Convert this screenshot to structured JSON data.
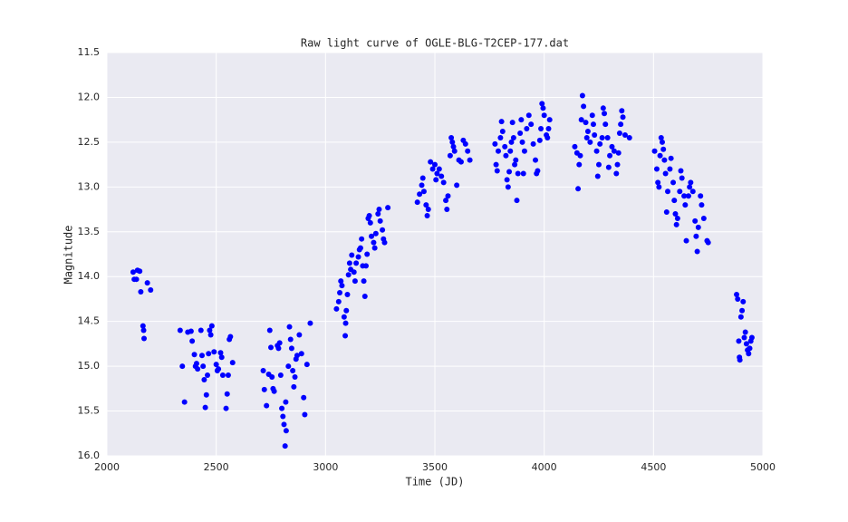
{
  "chart_data": {
    "type": "scatter",
    "title": "Raw light curve of OGLE-BLG-T2CEP-177.dat",
    "x_label": "Time (JD)",
    "y_label": "Magnitude",
    "color": "#0000ff",
    "grid": true,
    "background": "#eaeaf2",
    "grid_color": "#ffffff",
    "y_inverted": true,
    "xlim": [
      2000,
      5000
    ],
    "xticks": [
      2000,
      2500,
      3000,
      3500,
      4000,
      4500,
      5000
    ],
    "ylim": [
      11.5,
      16.0
    ],
    "yticks": [
      11.5,
      {
        "value": 12,
        "label": "12.0"
      },
      12.5,
      {
        "value": 13,
        "label": "13.0"
      },
      13.5,
      {
        "value": 14,
        "label": "14.0"
      },
      14.5,
      {
        "value": 15,
        "label": "15.0"
      },
      15.5,
      {
        "value": 16,
        "label": "16.0"
      }
    ],
    "x": [
      2120,
      2125,
      2135,
      2140,
      2150,
      2155,
      2165,
      2168,
      2170,
      2185,
      2200,
      2335,
      2345,
      2355,
      2370,
      2385,
      2390,
      2400,
      2405,
      2410,
      2415,
      2430,
      2435,
      2440,
      2445,
      2450,
      2455,
      2460,
      2465,
      2470,
      2475,
      2480,
      2490,
      2500,
      2505,
      2510,
      2520,
      2525,
      2530,
      2545,
      2550,
      2555,
      2560,
      2565,
      2575,
      2715,
      2720,
      2730,
      2740,
      2745,
      2750,
      2755,
      2760,
      2765,
      2780,
      2785,
      2790,
      2795,
      2800,
      2805,
      2810,
      2815,
      2818,
      2820,
      2830,
      2835,
      2840,
      2845,
      2850,
      2855,
      2860,
      2865,
      2870,
      2880,
      2890,
      2900,
      2905,
      2915,
      2930,
      3050,
      3060,
      3065,
      3070,
      3075,
      3085,
      3090,
      3092,
      3095,
      3100,
      3105,
      3110,
      3115,
      3120,
      3130,
      3135,
      3140,
      3150,
      3155,
      3160,
      3165,
      3170,
      3175,
      3180,
      3185,
      3190,
      3195,
      3200,
      3205,
      3210,
      3220,
      3225,
      3230,
      3240,
      3245,
      3250,
      3260,
      3265,
      3270,
      3285,
      3420,
      3430,
      3440,
      3445,
      3450,
      3460,
      3465,
      3470,
      3480,
      3490,
      3500,
      3505,
      3510,
      3520,
      3530,
      3540,
      3550,
      3555,
      3560,
      3570,
      3575,
      3580,
      3585,
      3590,
      3600,
      3610,
      3620,
      3630,
      3640,
      3650,
      3660,
      3775,
      3780,
      3785,
      3790,
      3800,
      3805,
      3810,
      3820,
      3825,
      3830,
      3835,
      3840,
      3845,
      3850,
      3855,
      3860,
      3865,
      3870,
      3875,
      3880,
      3890,
      3895,
      3900,
      3905,
      3910,
      3920,
      3930,
      3940,
      3950,
      3960,
      3965,
      3970,
      3980,
      3985,
      3990,
      3995,
      4000,
      4010,
      4015,
      4020,
      4025,
      4140,
      4150,
      4155,
      4160,
      4165,
      4170,
      4175,
      4180,
      4190,
      4195,
      4200,
      4210,
      4220,
      4225,
      4230,
      4240,
      4245,
      4250,
      4255,
      4265,
      4270,
      4275,
      4280,
      4290,
      4295,
      4300,
      4310,
      4320,
      4330,
      4335,
      4340,
      4345,
      4350,
      4355,
      4360,
      4370,
      4390,
      4505,
      4515,
      4520,
      4525,
      4530,
      4535,
      4540,
      4545,
      4550,
      4555,
      4560,
      4565,
      4575,
      4580,
      4590,
      4595,
      4600,
      4605,
      4610,
      4620,
      4625,
      4630,
      4640,
      4645,
      4650,
      4660,
      4665,
      4670,
      4680,
      4690,
      4695,
      4700,
      4705,
      4715,
      4720,
      4730,
      4745,
      4750,
      4880,
      4885,
      4890,
      4893,
      4895,
      4900,
      4905,
      4910,
      4915,
      4920,
      4925,
      4930,
      4935,
      4940,
      4945,
      4950
    ],
    "y": [
      13.95,
      14.03,
      14.03,
      13.93,
      13.94,
      14.17,
      14.55,
      14.6,
      14.69,
      14.07,
      14.15,
      14.6,
      15.0,
      15.4,
      14.62,
      14.61,
      14.72,
      14.87,
      15.0,
      14.97,
      15.03,
      14.6,
      14.88,
      15.0,
      15.15,
      15.46,
      15.32,
      15.1,
      14.86,
      14.6,
      14.65,
      14.55,
      14.84,
      14.98,
      15.05,
      15.03,
      14.85,
      14.9,
      15.1,
      15.47,
      15.31,
      15.1,
      14.7,
      14.67,
      14.96,
      15.05,
      15.26,
      15.44,
      15.09,
      14.6,
      14.79,
      15.12,
      15.25,
      15.28,
      14.77,
      14.8,
      14.74,
      15.1,
      15.47,
      15.56,
      15.65,
      15.89,
      15.4,
      15.72,
      15.0,
      14.56,
      14.7,
      14.8,
      15.05,
      15.23,
      15.12,
      14.92,
      14.88,
      14.65,
      14.86,
      15.35,
      15.54,
      14.98,
      14.52,
      14.36,
      14.28,
      14.18,
      14.05,
      14.1,
      14.45,
      14.66,
      14.52,
      14.38,
      14.2,
      13.98,
      13.85,
      13.92,
      13.76,
      13.95,
      14.05,
      13.85,
      13.78,
      13.7,
      13.68,
      13.58,
      13.88,
      14.05,
      14.22,
      13.88,
      13.75,
      13.35,
      13.32,
      13.4,
      13.55,
      13.62,
      13.68,
      13.52,
      13.3,
      13.25,
      13.38,
      13.48,
      13.58,
      13.62,
      13.23,
      13.17,
      13.08,
      12.98,
      12.9,
      13.05,
      13.2,
      13.32,
      13.25,
      12.72,
      12.8,
      12.75,
      12.92,
      12.85,
      12.8,
      12.88,
      12.95,
      13.15,
      13.25,
      13.1,
      12.65,
      12.45,
      12.5,
      12.55,
      12.6,
      12.98,
      12.7,
      12.72,
      12.48,
      12.52,
      12.6,
      12.7,
      12.52,
      12.75,
      12.82,
      12.6,
      12.45,
      12.27,
      12.38,
      12.55,
      12.65,
      12.92,
      13.0,
      12.83,
      12.6,
      12.5,
      12.28,
      12.45,
      12.75,
      12.7,
      13.15,
      12.85,
      12.4,
      12.25,
      12.5,
      12.85,
      12.6,
      12.35,
      12.2,
      12.3,
      12.52,
      12.7,
      12.85,
      12.82,
      12.48,
      12.35,
      12.07,
      12.12,
      12.2,
      12.42,
      12.45,
      12.35,
      12.25,
      12.55,
      12.62,
      13.02,
      12.75,
      12.65,
      12.25,
      11.98,
      12.1,
      12.28,
      12.45,
      12.38,
      12.5,
      12.2,
      12.3,
      12.42,
      12.6,
      12.88,
      12.75,
      12.52,
      12.45,
      12.12,
      12.18,
      12.3,
      12.45,
      12.78,
      12.65,
      12.55,
      12.6,
      12.85,
      12.75,
      12.62,
      12.4,
      12.3,
      12.15,
      12.22,
      12.42,
      12.45,
      12.6,
      12.8,
      12.95,
      13.0,
      12.65,
      12.45,
      12.5,
      12.58,
      12.7,
      12.85,
      13.28,
      13.05,
      12.8,
      12.68,
      12.95,
      13.15,
      13.3,
      13.42,
      13.35,
      13.05,
      12.82,
      12.9,
      13.1,
      13.2,
      13.6,
      13.1,
      13.0,
      12.95,
      13.05,
      13.38,
      13.55,
      13.72,
      13.45,
      13.1,
      13.2,
      13.35,
      13.6,
      13.62,
      14.2,
      14.25,
      14.72,
      14.9,
      14.93,
      14.45,
      14.38,
      14.28,
      14.68,
      14.62,
      14.75,
      14.82,
      14.86,
      14.8,
      14.72,
      14.68
    ]
  }
}
